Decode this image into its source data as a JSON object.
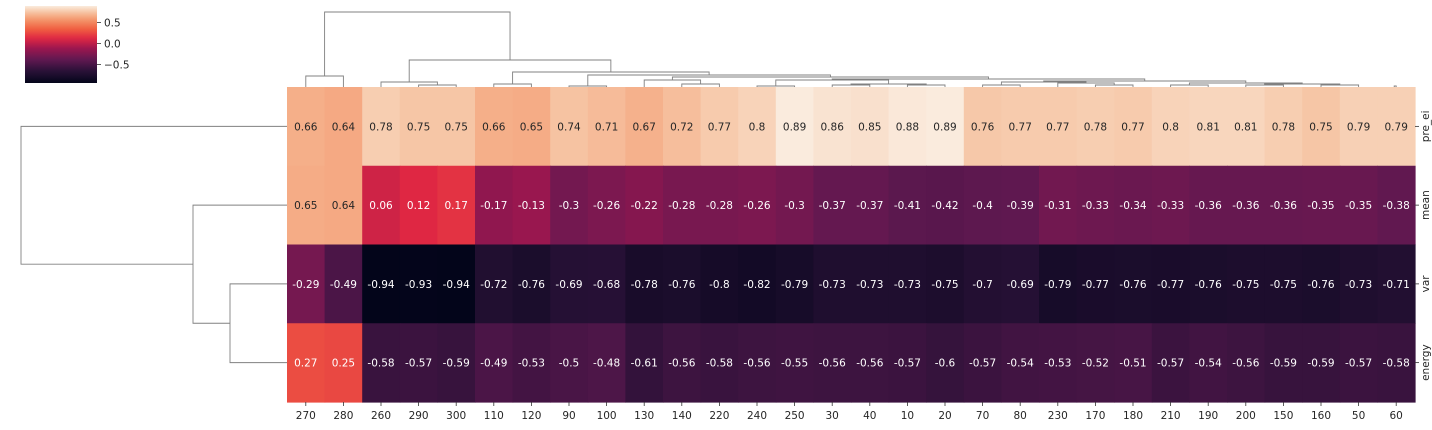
{
  "chart_data": {
    "type": "heatmap",
    "title": "",
    "xlabel": "",
    "ylabel": "",
    "columns": [
      "270",
      "280",
      "260",
      "290",
      "300",
      "110",
      "120",
      "90",
      "100",
      "130",
      "140",
      "220",
      "240",
      "250",
      "30",
      "40",
      "10",
      "20",
      "70",
      "80",
      "230",
      "170",
      "180",
      "210",
      "190",
      "200",
      "150",
      "160",
      "50",
      "60"
    ],
    "rows": [
      "pre_ei",
      "mean",
      "var",
      "energy"
    ],
    "values": [
      [
        "0.66",
        "0.64",
        "0.78",
        "0.75",
        "0.75",
        "0.66",
        "0.65",
        "0.74",
        "0.71",
        "0.67",
        "0.72",
        "0.77",
        "0.8",
        "0.89",
        "0.86",
        "0.85",
        "0.88",
        "0.89",
        "0.76",
        "0.77",
        "0.77",
        "0.78",
        "0.77",
        "0.8",
        "0.81",
        "0.81",
        "0.78",
        "0.75",
        "0.79",
        "0.79"
      ],
      [
        "0.65",
        "0.64",
        "0.06",
        "0.12",
        "0.17",
        "-0.17",
        "-0.13",
        "-0.3",
        "-0.26",
        "-0.22",
        "-0.28",
        "-0.28",
        "-0.26",
        "-0.3",
        "-0.37",
        "-0.37",
        "-0.41",
        "-0.42",
        "-0.4",
        "-0.39",
        "-0.31",
        "-0.33",
        "-0.34",
        "-0.33",
        "-0.36",
        "-0.36",
        "-0.36",
        "-0.35",
        "-0.35",
        "-0.38"
      ],
      [
        "-0.29",
        "-0.49",
        "-0.94",
        "-0.93",
        "-0.94",
        "-0.72",
        "-0.76",
        "-0.69",
        "-0.68",
        "-0.78",
        "-0.76",
        "-0.8",
        "-0.82",
        "-0.79",
        "-0.73",
        "-0.73",
        "-0.73",
        "-0.75",
        "-0.7",
        "-0.69",
        "-0.79",
        "-0.77",
        "-0.76",
        "-0.77",
        "-0.76",
        "-0.75",
        "-0.75",
        "-0.76",
        "-0.73",
        "-0.71"
      ],
      [
        "0.27",
        "0.25",
        "-0.58",
        "-0.57",
        "-0.59",
        "-0.49",
        "-0.53",
        "-0.5",
        "-0.48",
        "-0.61",
        "-0.56",
        "-0.58",
        "-0.56",
        "-0.55",
        "-0.56",
        "-0.56",
        "-0.57",
        "-0.6",
        "-0.57",
        "-0.54",
        "-0.53",
        "-0.52",
        "-0.51",
        "-0.57",
        "-0.54",
        "-0.56",
        "-0.59",
        "-0.59",
        "-0.57",
        "-0.58"
      ]
    ],
    "colorbar": {
      "ticks": [
        "0.5",
        "0.0",
        "−0.5"
      ],
      "tick_values": [
        0.5,
        0.0,
        -0.5
      ],
      "range": [
        -0.94,
        0.89
      ],
      "colormap": "rocket"
    },
    "row_dendrogram": true,
    "col_dendrogram": true
  }
}
